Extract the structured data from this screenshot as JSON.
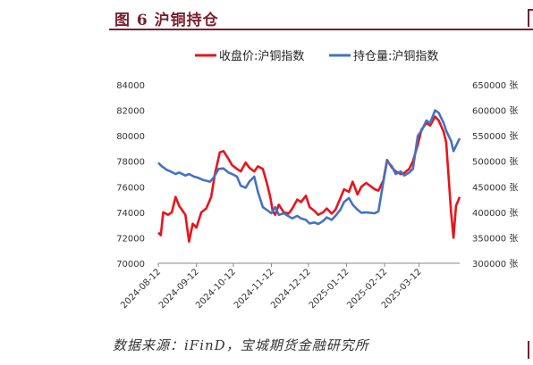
{
  "figure": {
    "title": "图 6 沪铜持仓",
    "source": "数据来源：iFinD，宝城期货金融研究所"
  },
  "chart_data": {
    "type": "line",
    "title": "",
    "xlabel": "",
    "ylabel": "",
    "legend_position": "top",
    "grid": false,
    "x_ticks": [
      "2024-08-12",
      "2024-09-12",
      "2024-10-12",
      "2024-11-12",
      "2024-12-12",
      "2025-01-12",
      "2025-02-12",
      "2025-03-12"
    ],
    "x_range": [
      "2024-08-12",
      "2025-04-14"
    ],
    "y_left": {
      "range": [
        70000,
        84000
      ],
      "ticks": [
        "70000",
        "72000",
        "74000",
        "76000",
        "78000",
        "80000",
        "82000",
        "84000"
      ]
    },
    "y_right": {
      "range": [
        300000,
        650000
      ],
      "ticks": [
        "300000 张",
        "350000 张",
        "400000 张",
        "450000 张",
        "500000 张",
        "550000 张",
        "600000 张",
        "650000 张"
      ]
    },
    "series": [
      {
        "name": "收盘价:沪铜指数",
        "axis": "left",
        "color": "#e8141c",
        "points": [
          [
            "2024-08-12",
            72400
          ],
          [
            "2024-08-14",
            72200
          ],
          [
            "2024-08-16",
            74000
          ],
          [
            "2024-08-20",
            73800
          ],
          [
            "2024-08-23",
            74000
          ],
          [
            "2024-08-26",
            75200
          ],
          [
            "2024-08-29",
            74500
          ],
          [
            "2024-09-03",
            73800
          ],
          [
            "2024-09-06",
            71700
          ],
          [
            "2024-09-09",
            73100
          ],
          [
            "2024-09-12",
            72800
          ],
          [
            "2024-09-16",
            74000
          ],
          [
            "2024-09-20",
            74300
          ],
          [
            "2024-09-24",
            75200
          ],
          [
            "2024-09-27",
            77000
          ],
          [
            "2024-10-01",
            78700
          ],
          [
            "2024-10-04",
            78800
          ],
          [
            "2024-10-08",
            78200
          ],
          [
            "2024-10-11",
            77700
          ],
          [
            "2024-10-15",
            77400
          ],
          [
            "2024-10-18",
            77200
          ],
          [
            "2024-10-22",
            77900
          ],
          [
            "2024-10-25",
            77500
          ],
          [
            "2024-10-29",
            77200
          ],
          [
            "2024-11-01",
            77600
          ],
          [
            "2024-11-05",
            77400
          ],
          [
            "2024-11-08",
            76400
          ],
          [
            "2024-11-11",
            75200
          ],
          [
            "2024-11-13",
            74100
          ],
          [
            "2024-11-15",
            73800
          ],
          [
            "2024-11-18",
            74600
          ],
          [
            "2024-11-22",
            74000
          ],
          [
            "2024-11-26",
            73900
          ],
          [
            "2024-11-29",
            74300
          ],
          [
            "2024-12-03",
            75000
          ],
          [
            "2024-12-06",
            74800
          ],
          [
            "2024-12-10",
            75300
          ],
          [
            "2024-12-13",
            74400
          ],
          [
            "2024-12-17",
            74100
          ],
          [
            "2024-12-20",
            73800
          ],
          [
            "2024-12-24",
            74000
          ],
          [
            "2024-12-27",
            74300
          ],
          [
            "2024-12-31",
            73900
          ],
          [
            "2025-01-03",
            74200
          ],
          [
            "2025-01-07",
            75100
          ],
          [
            "2025-01-10",
            75800
          ],
          [
            "2025-01-14",
            75600
          ],
          [
            "2025-01-17",
            76400
          ],
          [
            "2025-01-21",
            75400
          ],
          [
            "2025-01-24",
            76000
          ],
          [
            "2025-01-28",
            76300
          ],
          [
            "2025-02-04",
            75800
          ],
          [
            "2025-02-07",
            75700
          ],
          [
            "2025-02-11",
            76500
          ],
          [
            "2025-02-14",
            78100
          ],
          [
            "2025-02-18",
            77500
          ],
          [
            "2025-02-21",
            77200
          ],
          [
            "2025-02-25",
            77000
          ],
          [
            "2025-02-28",
            77100
          ],
          [
            "2025-03-04",
            77400
          ],
          [
            "2025-03-07",
            78000
          ],
          [
            "2025-03-11",
            79300
          ],
          [
            "2025-03-14",
            80500
          ],
          [
            "2025-03-18",
            81000
          ],
          [
            "2025-03-21",
            80800
          ],
          [
            "2025-03-25",
            81500
          ],
          [
            "2025-03-28",
            81200
          ],
          [
            "2025-04-01",
            80300
          ],
          [
            "2025-04-03",
            79500
          ],
          [
            "2025-04-07",
            74000
          ],
          [
            "2025-04-09",
            72000
          ],
          [
            "2025-04-11",
            74500
          ],
          [
            "2025-04-14",
            75200
          ]
        ]
      },
      {
        "name": "持仓量:沪铜指数",
        "axis": "right",
        "color": "#4472c4",
        "points": [
          [
            "2024-08-12",
            497000
          ],
          [
            "2024-08-15",
            490000
          ],
          [
            "2024-08-19",
            483000
          ],
          [
            "2024-08-22",
            480000
          ],
          [
            "2024-08-26",
            475000
          ],
          [
            "2024-08-29",
            478000
          ],
          [
            "2024-09-03",
            472000
          ],
          [
            "2024-09-06",
            475000
          ],
          [
            "2024-09-10",
            470000
          ],
          [
            "2024-09-13",
            468000
          ],
          [
            "2024-09-18",
            463000
          ],
          [
            "2024-09-23",
            460000
          ],
          [
            "2024-09-26",
            468000
          ],
          [
            "2024-09-30",
            485000
          ],
          [
            "2024-10-04",
            486000
          ],
          [
            "2024-10-08",
            478000
          ],
          [
            "2024-10-11",
            475000
          ],
          [
            "2024-10-15",
            470000
          ],
          [
            "2024-10-18",
            452000
          ],
          [
            "2024-10-22",
            448000
          ],
          [
            "2024-10-25",
            460000
          ],
          [
            "2024-10-29",
            470000
          ],
          [
            "2024-11-01",
            440000
          ],
          [
            "2024-11-05",
            410000
          ],
          [
            "2024-11-08",
            405000
          ],
          [
            "2024-11-12",
            398000
          ],
          [
            "2024-11-15",
            410000
          ],
          [
            "2024-11-18",
            395000
          ],
          [
            "2024-11-22",
            398000
          ],
          [
            "2024-11-26",
            392000
          ],
          [
            "2024-11-29",
            388000
          ],
          [
            "2024-12-03",
            393000
          ],
          [
            "2024-12-06",
            388000
          ],
          [
            "2024-12-10",
            385000
          ],
          [
            "2024-12-13",
            378000
          ],
          [
            "2024-12-17",
            380000
          ],
          [
            "2024-12-20",
            377000
          ],
          [
            "2024-12-24",
            383000
          ],
          [
            "2024-12-27",
            390000
          ],
          [
            "2024-12-31",
            385000
          ],
          [
            "2025-01-03",
            393000
          ],
          [
            "2025-01-07",
            405000
          ],
          [
            "2025-01-10",
            420000
          ],
          [
            "2025-01-14",
            428000
          ],
          [
            "2025-01-17",
            415000
          ],
          [
            "2025-01-21",
            405000
          ],
          [
            "2025-01-24",
            399000
          ],
          [
            "2025-01-28",
            400000
          ],
          [
            "2025-02-04",
            398000
          ],
          [
            "2025-02-07",
            402000
          ],
          [
            "2025-02-11",
            460000
          ],
          [
            "2025-02-14",
            500000
          ],
          [
            "2025-02-18",
            490000
          ],
          [
            "2025-02-21",
            475000
          ],
          [
            "2025-02-25",
            480000
          ],
          [
            "2025-02-28",
            472000
          ],
          [
            "2025-03-04",
            478000
          ],
          [
            "2025-03-07",
            485000
          ],
          [
            "2025-03-11",
            550000
          ],
          [
            "2025-03-14",
            560000
          ],
          [
            "2025-03-18",
            580000
          ],
          [
            "2025-03-21",
            575000
          ],
          [
            "2025-03-25",
            600000
          ],
          [
            "2025-03-28",
            595000
          ],
          [
            "2025-04-01",
            575000
          ],
          [
            "2025-04-03",
            560000
          ],
          [
            "2025-04-07",
            540000
          ],
          [
            "2025-04-09",
            520000
          ],
          [
            "2025-04-11",
            530000
          ],
          [
            "2025-04-14",
            545000
          ]
        ]
      }
    ]
  }
}
